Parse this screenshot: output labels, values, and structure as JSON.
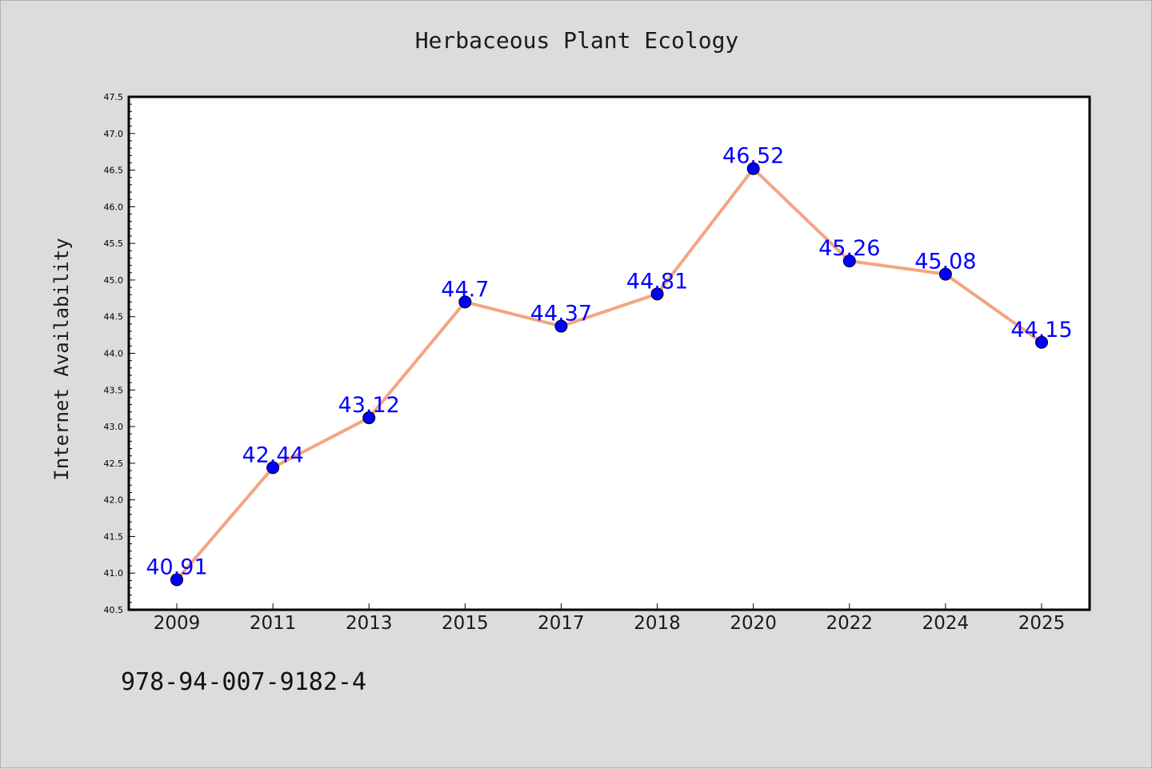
{
  "chart_data": {
    "type": "line",
    "title": "Herbaceous Plant Ecology",
    "xlabel": "",
    "ylabel": "Internet Availability",
    "categories": [
      "2009",
      "2011",
      "2013",
      "2015",
      "2017",
      "2018",
      "2020",
      "2022",
      "2024",
      "2025"
    ],
    "series": [
      {
        "values": [
          40.91,
          42.44,
          43.12,
          44.7,
          44.37,
          44.81,
          46.52,
          45.26,
          45.08,
          44.15
        ],
        "labels": [
          "40.91",
          "42.44",
          "43.12",
          "44.7",
          "44.37",
          "44.81",
          "46.52",
          "45.26",
          "45.08",
          "44.15"
        ]
      }
    ],
    "ylim": [
      40.5,
      47.5
    ],
    "yticks": [
      "40.5",
      "41.0",
      "41.5",
      "42.0",
      "42.5",
      "43.0",
      "43.5",
      "44.0",
      "44.5",
      "45.0",
      "45.5",
      "46.0",
      "46.5",
      "47.0",
      "47.5"
    ],
    "grid": false,
    "line_color": "#f4a582",
    "marker_color": "#0000ff",
    "label_color": "#0000ff"
  },
  "footer": {
    "code": "978-94-007-9182-4"
  }
}
